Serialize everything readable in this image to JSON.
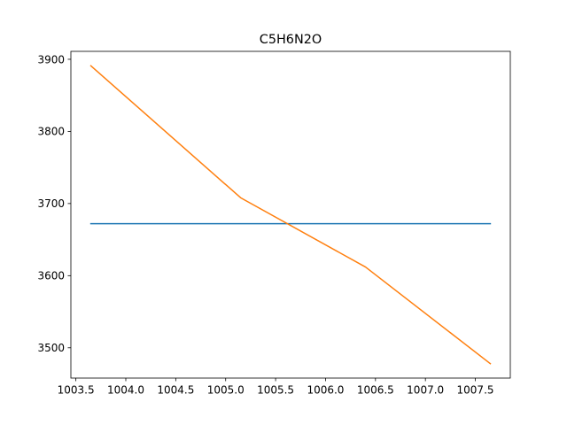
{
  "chart_data": {
    "type": "line",
    "title": "C5H6N2O",
    "xlabel": "",
    "ylabel": "",
    "xlim": [
      1003.45,
      1007.85
    ],
    "ylim": [
      3458,
      3911
    ],
    "grid": false,
    "legend": "none",
    "x_ticks": [
      1003.5,
      1004.0,
      1004.5,
      1005.0,
      1005.5,
      1006.0,
      1006.5,
      1007.0,
      1007.5
    ],
    "x_tick_labels": [
      "1003.5",
      "1004.0",
      "1004.5",
      "1005.0",
      "1005.5",
      "1006.0",
      "1006.5",
      "1007.0",
      "1007.5"
    ],
    "y_ticks": [
      3500,
      3600,
      3700,
      3800,
      3900
    ],
    "y_tick_labels": [
      "3500",
      "3600",
      "3700",
      "3800",
      "3900"
    ],
    "series": [
      {
        "color": "#1f77b4",
        "x": [
          1003.65,
          1007.65
        ],
        "y": [
          3672,
          3672
        ]
      },
      {
        "color": "#ff7f0e",
        "x": [
          1003.65,
          1005.15,
          1006.4,
          1007.65
        ],
        "y": [
          3891,
          3708,
          3612,
          3478
        ]
      }
    ]
  }
}
